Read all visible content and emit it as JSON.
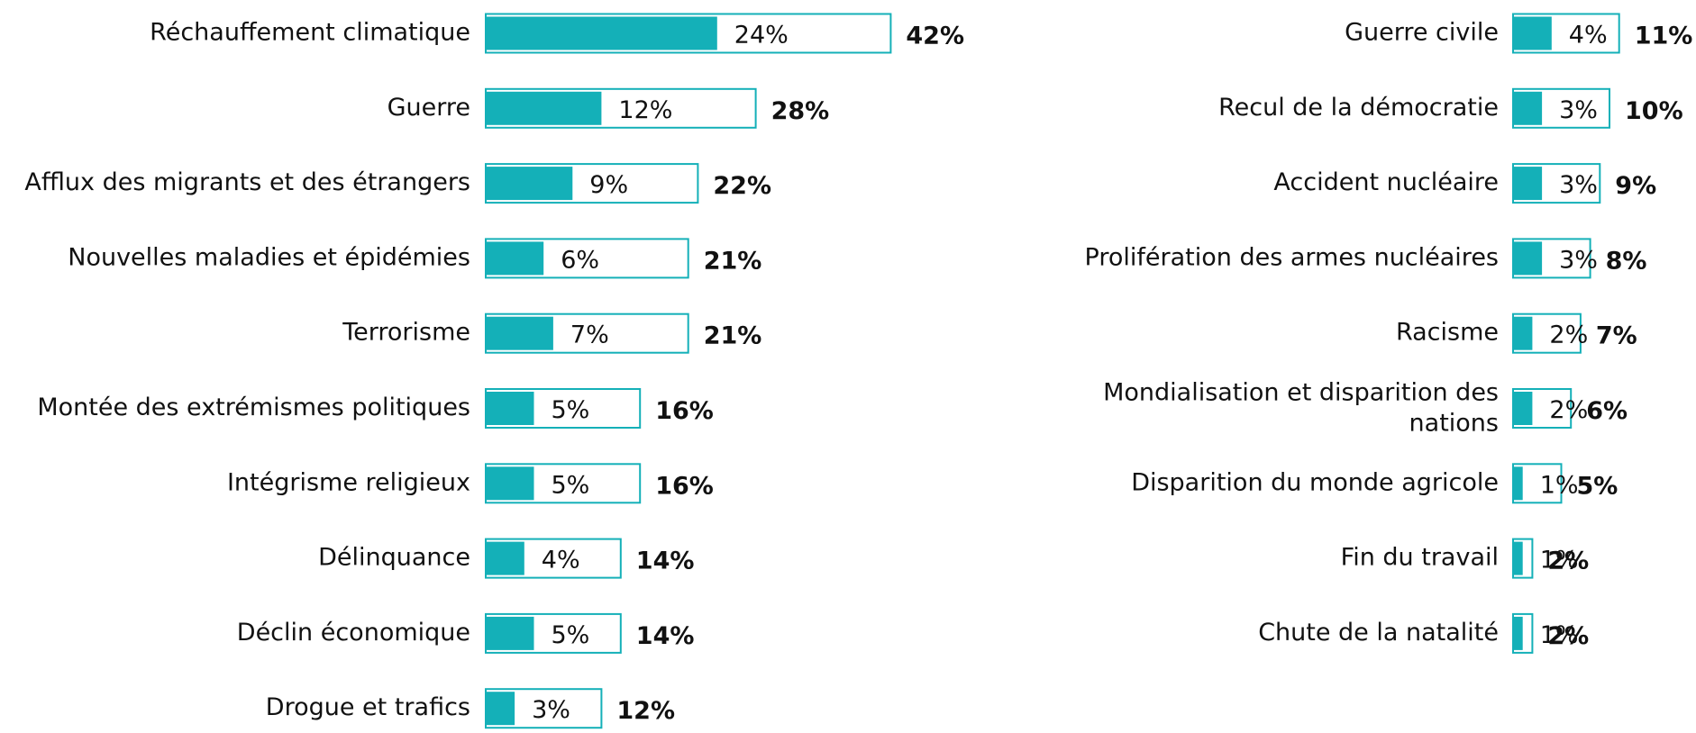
{
  "chart_data": [
    {
      "type": "bar",
      "categories": [
        "Réchauffement climatique",
        "Guerre",
        "Afflux des migrants et des étrangers",
        "Nouvelles maladies et épidémies",
        "Terrorisme",
        "Montée des extrémismes politiques",
        "Intégrisme religieux",
        "Délinquance",
        "Déclin économique",
        "Drogue et trafics"
      ],
      "series": [
        {
          "color": "#14b0b8",
          "values": [
            24,
            12,
            9,
            6,
            7,
            5,
            5,
            4,
            5,
            3
          ],
          "value_labels": [
            "24%",
            "12%",
            "9%",
            "6%",
            "7%",
            "5%",
            "5%",
            "4%",
            "5%",
            "3%"
          ]
        },
        {
          "color": "#14b0b8",
          "values": [
            42,
            28,
            22,
            21,
            21,
            16,
            16,
            14,
            14,
            12
          ],
          "value_labels": [
            "42%",
            "28%",
            "22%",
            "21%",
            "21%",
            "16%",
            "16%",
            "14%",
            "14%",
            "12%"
          ]
        }
      ]
    },
    {
      "type": "bar",
      "categories": [
        "Guerre civile",
        "Recul de la démocratie",
        "Accident nucléaire",
        "Prolifération des armes nucléaires",
        "Racisme",
        "Mondialisation et disparition des nations",
        "Disparition du monde agricole",
        "Fin du travail",
        "Chute de la natalité"
      ],
      "series": [
        {
          "color": "#14b0b8",
          "values": [
            4,
            3,
            3,
            3,
            2,
            2,
            1,
            1,
            1
          ],
          "value_labels": [
            "4%",
            "3%",
            "3%",
            "3%",
            "2%",
            "2%",
            "1%",
            "1%",
            "1%"
          ]
        },
        {
          "color": "#14b0b8",
          "values": [
            11,
            10,
            9,
            8,
            7,
            6,
            5,
            2,
            2
          ],
          "value_labels": [
            "11%",
            "10%",
            "9%",
            "8%",
            "7%",
            "6%",
            "5%",
            "2%",
            "2%"
          ]
        }
      ]
    }
  ]
}
